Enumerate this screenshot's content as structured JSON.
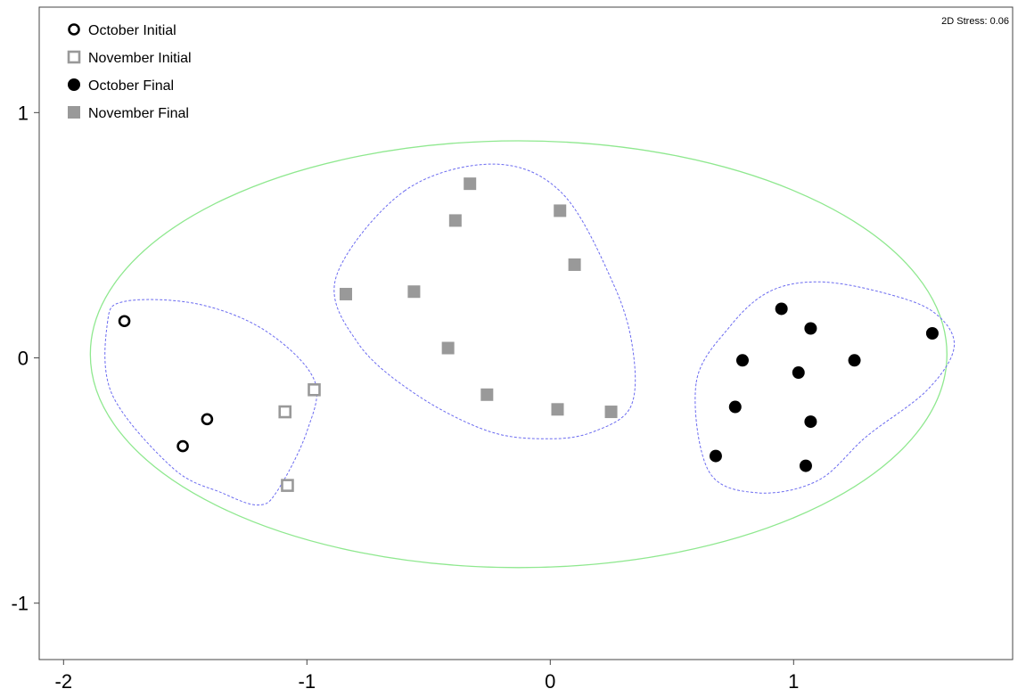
{
  "chart_data": {
    "type": "scatter",
    "title": "",
    "xlabel": "",
    "ylabel": "",
    "xlim": [
      -2.1,
      1.9
    ],
    "ylim": [
      -1.23,
      1.43
    ],
    "x_ticks": [
      -2,
      -1,
      0,
      1
    ],
    "y_ticks": [
      -1,
      0,
      1
    ],
    "grid": false,
    "legend_position": "top-left",
    "annotation": "2D Stress: 0.06",
    "colors": {
      "fill_gray": "#999999",
      "black": "#000000",
      "outer_boundary": "#8fe88f",
      "cluster_boundary": "#6b6bf0"
    },
    "series": [
      {
        "name": "October Initial",
        "marker": "open-circle",
        "points": [
          [
            -1.75,
            0.15
          ],
          [
            -1.51,
            -0.36
          ],
          [
            -1.41,
            -0.25
          ]
        ]
      },
      {
        "name": "November Initial",
        "marker": "open-square",
        "points": [
          [
            -1.09,
            -0.22
          ],
          [
            -0.97,
            -0.13
          ],
          [
            -1.08,
            -0.52
          ]
        ]
      },
      {
        "name": "October Final",
        "marker": "filled-circle",
        "points": [
          [
            0.95,
            0.2
          ],
          [
            1.07,
            0.12
          ],
          [
            0.79,
            -0.01
          ],
          [
            1.02,
            -0.06
          ],
          [
            1.25,
            -0.01
          ],
          [
            1.57,
            0.1
          ],
          [
            0.76,
            -0.2
          ],
          [
            1.07,
            -0.26
          ],
          [
            0.68,
            -0.4
          ],
          [
            1.05,
            -0.44
          ]
        ]
      },
      {
        "name": "November Final",
        "marker": "filled-square",
        "points": [
          [
            -0.33,
            0.71
          ],
          [
            -0.39,
            0.56
          ],
          [
            0.04,
            0.6
          ],
          [
            0.1,
            0.38
          ],
          [
            -0.84,
            0.26
          ],
          [
            -0.56,
            0.27
          ],
          [
            -0.42,
            0.04
          ],
          [
            -0.26,
            -0.15
          ],
          [
            0.03,
            -0.21
          ],
          [
            0.25,
            -0.22
          ]
        ]
      }
    ],
    "outlines": [
      {
        "kind": "ellipse",
        "style": "solid",
        "color": "#8fe88f",
        "center": [
          -0.13,
          0.015
        ],
        "radii": [
          1.76,
          0.87
        ]
      },
      {
        "kind": "closed-curve",
        "style": "dashed",
        "color": "#6b6bf0",
        "points": [
          [
            -1.82,
            0.14
          ],
          [
            -1.75,
            0.23
          ],
          [
            -1.45,
            0.22
          ],
          [
            -1.17,
            0.11
          ],
          [
            -0.97,
            -0.09
          ],
          [
            -1.0,
            -0.3
          ],
          [
            -1.12,
            -0.54
          ],
          [
            -1.2,
            -0.6
          ],
          [
            -1.35,
            -0.55
          ],
          [
            -1.55,
            -0.45
          ],
          [
            -1.8,
            -0.15
          ]
        ]
      },
      {
        "kind": "closed-curve",
        "style": "dashed",
        "color": "#6b6bf0",
        "points": [
          [
            -0.6,
            0.68
          ],
          [
            -0.23,
            0.79
          ],
          [
            0.05,
            0.67
          ],
          [
            0.26,
            0.3
          ],
          [
            0.34,
            0.03
          ],
          [
            0.33,
            -0.2
          ],
          [
            0.18,
            -0.3
          ],
          [
            0.0,
            -0.33
          ],
          [
            -0.25,
            -0.3
          ],
          [
            -0.55,
            -0.15
          ],
          [
            -0.79,
            0.06
          ],
          [
            -0.88,
            0.33
          ]
        ]
      },
      {
        "kind": "closed-curve",
        "style": "dashed",
        "color": "#6b6bf0",
        "points": [
          [
            0.6,
            -0.1
          ],
          [
            0.74,
            0.13
          ],
          [
            0.9,
            0.27
          ],
          [
            1.1,
            0.31
          ],
          [
            1.35,
            0.27
          ],
          [
            1.57,
            0.19
          ],
          [
            1.66,
            0.05
          ],
          [
            1.55,
            -0.13
          ],
          [
            1.3,
            -0.32
          ],
          [
            1.1,
            -0.5
          ],
          [
            0.85,
            -0.55
          ],
          [
            0.65,
            -0.46
          ]
        ]
      }
    ]
  }
}
